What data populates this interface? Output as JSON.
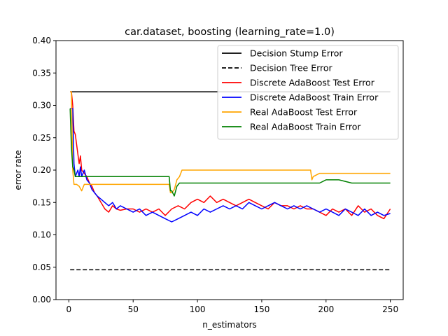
{
  "chart_data": {
    "type": "line",
    "title": "car.dataset, boosting (learning_rate=1.0)",
    "xlabel": "n_estimators",
    "ylabel": "error rate",
    "xlim": [
      -10,
      260
    ],
    "ylim": [
      0.0,
      0.4
    ],
    "xticks": [
      0,
      50,
      100,
      150,
      200,
      250
    ],
    "yticks": [
      0.0,
      0.05,
      0.1,
      0.15,
      0.2,
      0.25,
      0.3,
      0.35,
      0.4
    ],
    "xtick_labels": [
      "0",
      "50",
      "100",
      "150",
      "200",
      "250"
    ],
    "ytick_labels": [
      "0.00",
      "0.05",
      "0.10",
      "0.15",
      "0.20",
      "0.25",
      "0.30",
      "0.35",
      "0.40"
    ],
    "grid": false,
    "legend_position": "top-right",
    "series": [
      {
        "name": "Decision Stump Error",
        "color": "#000000",
        "dash": "solid",
        "x": [
          1,
          250
        ],
        "y": [
          0.321,
          0.321
        ]
      },
      {
        "name": "Decision Tree Error",
        "color": "#000000",
        "dash": "dashed",
        "x": [
          1,
          250
        ],
        "y": [
          0.046,
          0.046
        ]
      },
      {
        "name": "Discrete AdaBoost Test Error",
        "color": "#ff0000",
        "dash": "solid",
        "x": [
          1,
          2,
          3,
          4,
          5,
          6,
          7,
          8,
          9,
          10,
          12,
          14,
          16,
          18,
          20,
          22,
          25,
          28,
          31,
          34,
          37,
          40,
          45,
          50,
          55,
          60,
          65,
          70,
          75,
          80,
          85,
          90,
          95,
          100,
          105,
          110,
          115,
          120,
          125,
          130,
          135,
          140,
          145,
          150,
          155,
          160,
          165,
          170,
          175,
          180,
          185,
          190,
          195,
          200,
          205,
          210,
          215,
          220,
          225,
          230,
          235,
          240,
          245,
          250
        ],
        "y": [
          0.321,
          0.321,
          0.3,
          0.26,
          0.255,
          0.24,
          0.225,
          0.21,
          0.222,
          0.2,
          0.195,
          0.19,
          0.18,
          0.175,
          0.165,
          0.16,
          0.15,
          0.14,
          0.135,
          0.145,
          0.14,
          0.138,
          0.14,
          0.14,
          0.135,
          0.14,
          0.135,
          0.14,
          0.13,
          0.14,
          0.145,
          0.14,
          0.15,
          0.155,
          0.15,
          0.16,
          0.15,
          0.155,
          0.15,
          0.145,
          0.15,
          0.155,
          0.15,
          0.145,
          0.14,
          0.15,
          0.145,
          0.145,
          0.14,
          0.145,
          0.14,
          0.14,
          0.135,
          0.13,
          0.14,
          0.135,
          0.14,
          0.13,
          0.145,
          0.135,
          0.14,
          0.13,
          0.125,
          0.14
        ]
      },
      {
        "name": "Discrete AdaBoost Train Error",
        "color": "#0000ff",
        "dash": "solid",
        "x": [
          1,
          2,
          3,
          4,
          5,
          6,
          7,
          8,
          9,
          10,
          12,
          14,
          16,
          18,
          20,
          22,
          25,
          28,
          31,
          34,
          37,
          40,
          45,
          50,
          55,
          60,
          65,
          70,
          75,
          80,
          85,
          90,
          95,
          100,
          105,
          110,
          115,
          120,
          125,
          130,
          135,
          140,
          145,
          150,
          155,
          160,
          165,
          170,
          175,
          180,
          185,
          190,
          195,
          200,
          205,
          210,
          215,
          220,
          225,
          230,
          235,
          240,
          245,
          250
        ],
        "y": [
          0.295,
          0.295,
          0.295,
          0.21,
          0.19,
          0.195,
          0.2,
          0.19,
          0.205,
          0.19,
          0.2,
          0.185,
          0.18,
          0.17,
          0.165,
          0.16,
          0.155,
          0.15,
          0.145,
          0.15,
          0.14,
          0.145,
          0.14,
          0.135,
          0.14,
          0.13,
          0.135,
          0.13,
          0.125,
          0.12,
          0.125,
          0.13,
          0.135,
          0.13,
          0.14,
          0.135,
          0.14,
          0.145,
          0.14,
          0.145,
          0.14,
          0.15,
          0.145,
          0.14,
          0.145,
          0.15,
          0.145,
          0.14,
          0.145,
          0.14,
          0.145,
          0.14,
          0.135,
          0.14,
          0.135,
          0.13,
          0.14,
          0.135,
          0.13,
          0.14,
          0.13,
          0.135,
          0.13,
          0.133
        ]
      },
      {
        "name": "Real AdaBoost Test Error",
        "color": "#ffa500",
        "dash": "solid",
        "x": [
          1,
          2,
          3,
          4,
          5,
          6,
          8,
          10,
          12,
          15,
          20,
          30,
          40,
          50,
          60,
          70,
          78,
          79,
          80,
          82,
          84,
          86,
          88,
          90,
          95,
          100,
          110,
          120,
          130,
          140,
          150,
          160,
          170,
          180,
          188,
          189,
          190,
          195,
          200,
          210,
          220,
          230,
          240,
          245,
          250
        ],
        "y": [
          0.321,
          0.321,
          0.2,
          0.178,
          0.178,
          0.178,
          0.175,
          0.168,
          0.178,
          0.178,
          0.178,
          0.178,
          0.178,
          0.178,
          0.178,
          0.178,
          0.178,
          0.165,
          0.165,
          0.17,
          0.185,
          0.19,
          0.2,
          0.2,
          0.2,
          0.2,
          0.2,
          0.2,
          0.2,
          0.2,
          0.2,
          0.2,
          0.2,
          0.2,
          0.2,
          0.185,
          0.19,
          0.195,
          0.195,
          0.195,
          0.195,
          0.195,
          0.195,
          0.195,
          0.195
        ]
      },
      {
        "name": "Real AdaBoost Train Error",
        "color": "#008000",
        "dash": "solid",
        "x": [
          1,
          2,
          3,
          4,
          5,
          6,
          8,
          10,
          12,
          15,
          20,
          30,
          40,
          50,
          60,
          70,
          78,
          79,
          80,
          82,
          84,
          86,
          88,
          90,
          95,
          100,
          110,
          120,
          130,
          140,
          150,
          160,
          170,
          180,
          188,
          189,
          190,
          195,
          200,
          210,
          220,
          230,
          240,
          245,
          250
        ],
        "y": [
          0.295,
          0.235,
          0.205,
          0.2,
          0.19,
          0.19,
          0.19,
          0.19,
          0.19,
          0.19,
          0.19,
          0.19,
          0.19,
          0.19,
          0.19,
          0.19,
          0.19,
          0.168,
          0.168,
          0.16,
          0.175,
          0.18,
          0.18,
          0.18,
          0.18,
          0.18,
          0.18,
          0.18,
          0.18,
          0.18,
          0.18,
          0.18,
          0.18,
          0.18,
          0.18,
          0.18,
          0.18,
          0.18,
          0.185,
          0.185,
          0.18,
          0.18,
          0.18,
          0.18,
          0.18
        ]
      }
    ]
  }
}
